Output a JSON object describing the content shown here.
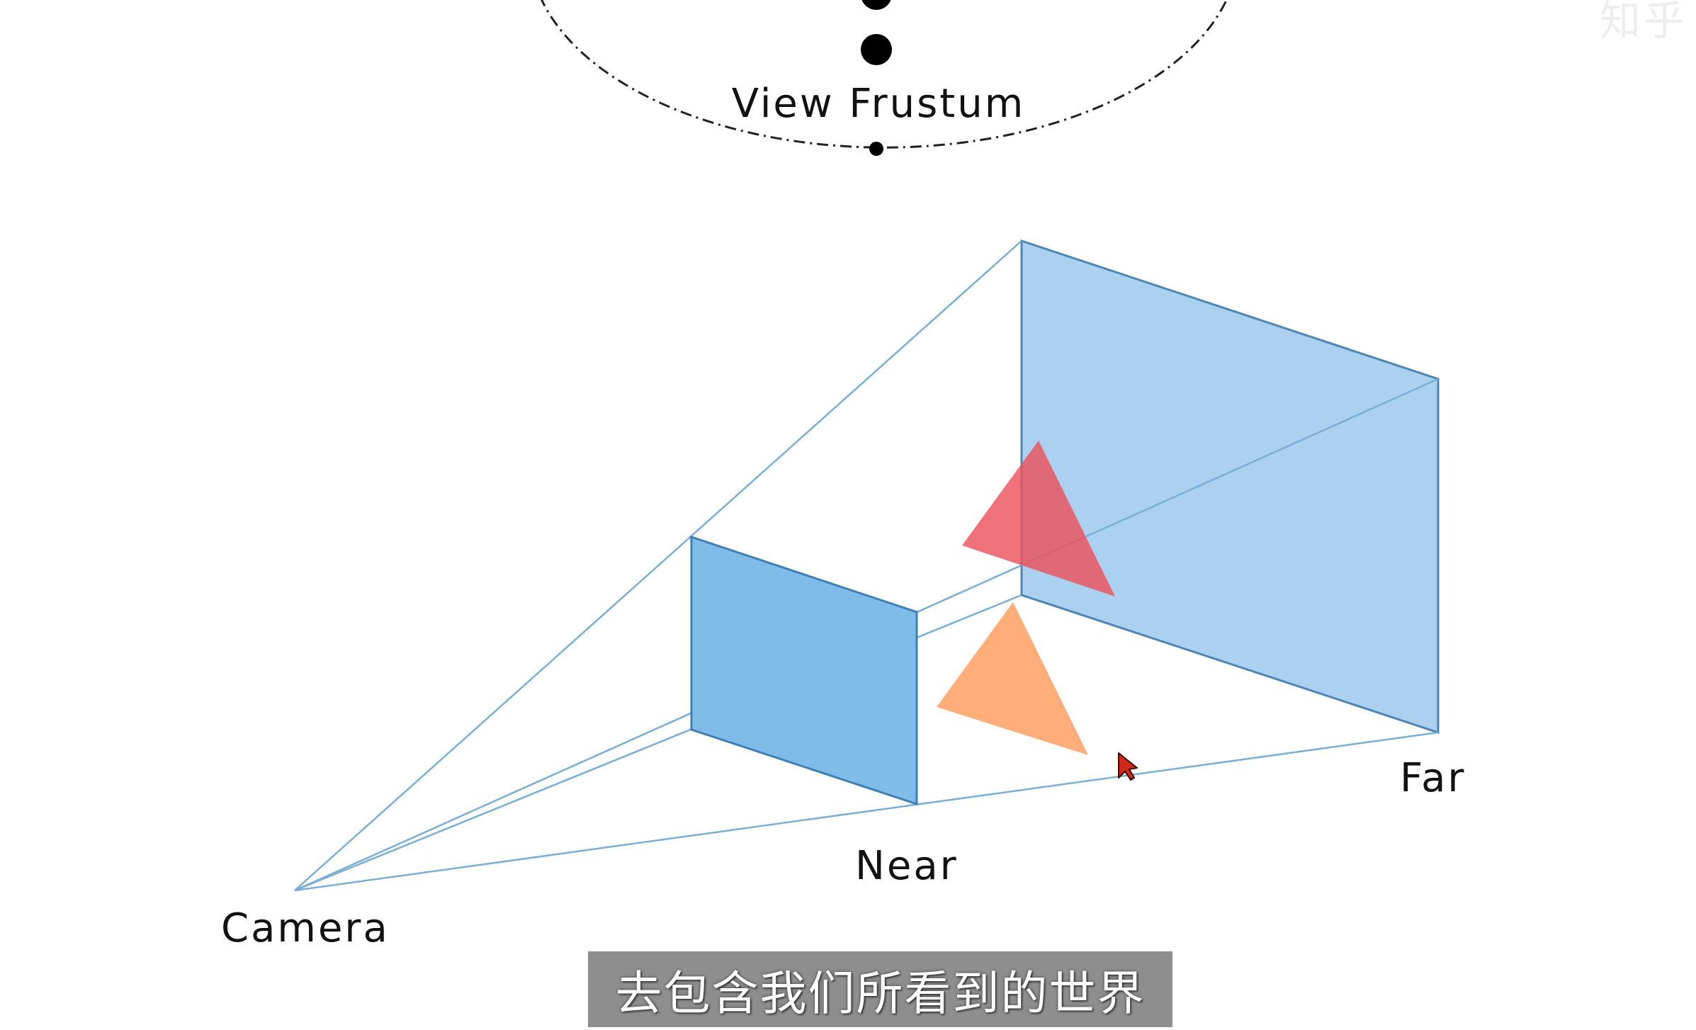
{
  "diagram": {
    "title": "View Frustum",
    "labels": {
      "camera": "Camera",
      "near": "Near",
      "far": "Far"
    },
    "colors": {
      "near_plane": "#7ab8e8",
      "far_plane": "#a9d0f0",
      "frustum_edge": "#7aaed4",
      "red_triangle": "#ee5c64",
      "orange_triangle": "#ffae78",
      "cursor": "#cc2a1a"
    }
  },
  "subtitle": {
    "text": "去包含我们所看到的世界"
  },
  "watermark": {
    "text": "知乎"
  }
}
